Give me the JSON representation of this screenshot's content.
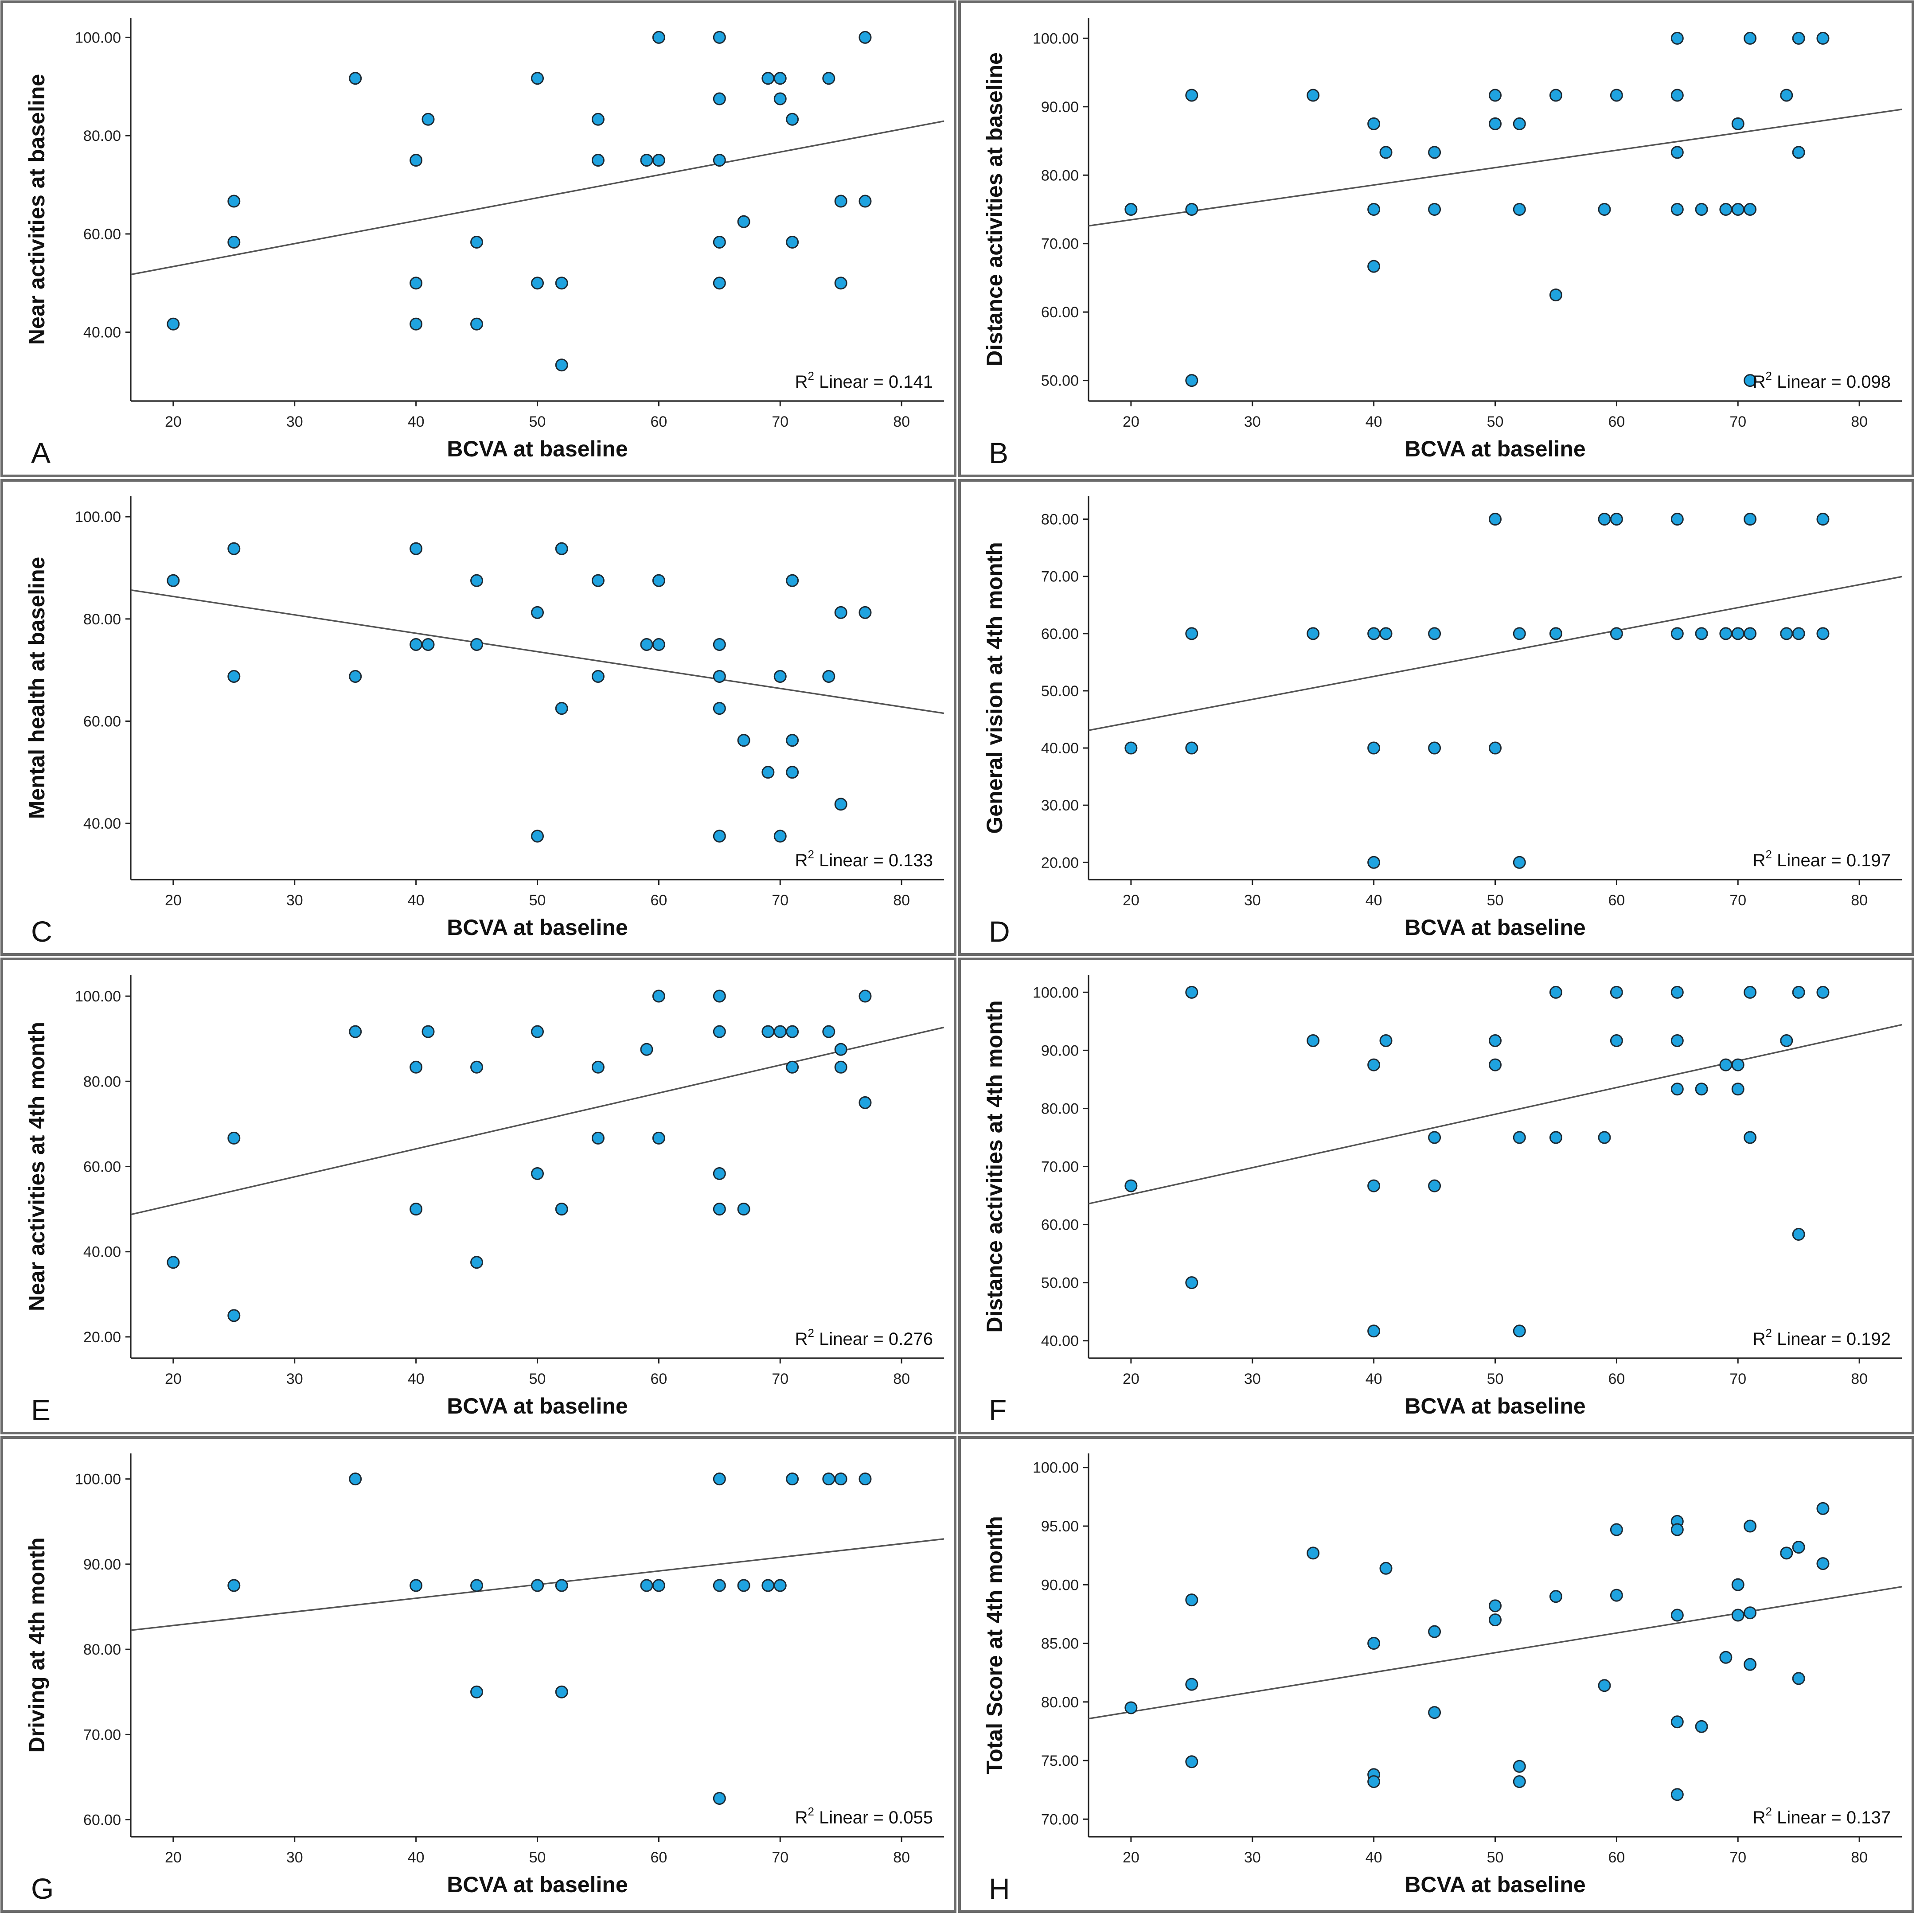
{
  "figure": {
    "point_color": "#1fa3e0",
    "line_color": "#555555",
    "border_color": "#6b6b6b"
  },
  "chart_data": [
    {
      "panel": "A",
      "type": "scatter",
      "xlabel": "BCVA at baseline",
      "ylabel": "Near activities at baseline",
      "xticks": [
        "20",
        "30",
        "40",
        "50",
        "60",
        "70",
        "80"
      ],
      "yticks": [
        "40.00",
        "60.00",
        "80.00",
        "100.00"
      ],
      "xlim": [
        16.5,
        83.5
      ],
      "ylim": [
        26,
        104
      ],
      "x": [
        20,
        25,
        25,
        35,
        40,
        40,
        40,
        41,
        45,
        45,
        50,
        50,
        52,
        52,
        55,
        55,
        59,
        60,
        60,
        65,
        65,
        65,
        65,
        65,
        67,
        69,
        70,
        70,
        71,
        71,
        74,
        75,
        75,
        77,
        77
      ],
      "y": [
        41.67,
        58.33,
        66.67,
        91.67,
        75,
        50,
        41.67,
        83.33,
        58.33,
        41.67,
        91.67,
        50,
        50,
        33.33,
        83.33,
        75,
        75,
        100,
        75,
        100,
        87.5,
        75,
        58.33,
        50,
        62.5,
        91.67,
        91.67,
        87.5,
        83.33,
        58.33,
        91.67,
        66.67,
        50,
        100,
        66.67
      ],
      "fit": {
        "intercept": 44.05,
        "slope": 0.466
      },
      "r2_prefix": "R",
      "r2_exp": "2",
      "r2_text": "Linear = 0.141"
    },
    {
      "panel": "B",
      "type": "scatter",
      "xlabel": "BCVA at baseline",
      "ylabel": "Distance activities at baseline",
      "xticks": [
        "20",
        "30",
        "40",
        "50",
        "60",
        "70",
        "80"
      ],
      "yticks": [
        "50.00",
        "60.00",
        "70.00",
        "80.00",
        "90.00",
        "100.00"
      ],
      "xlim": [
        16.5,
        83.5
      ],
      "ylim": [
        47,
        103
      ],
      "x": [
        20,
        25,
        25,
        25,
        35,
        40,
        40,
        40,
        41,
        45,
        45,
        50,
        50,
        52,
        52,
        55,
        55,
        59,
        60,
        65,
        65,
        65,
        65,
        67,
        69,
        70,
        70,
        71,
        71,
        71,
        74,
        75,
        75,
        77
      ],
      "y": [
        75,
        91.67,
        75,
        50,
        91.67,
        87.5,
        75,
        66.67,
        83.33,
        83.33,
        75,
        91.67,
        87.5,
        87.5,
        75,
        91.67,
        62.5,
        75,
        91.67,
        100,
        91.67,
        83.33,
        75,
        75,
        75,
        87.5,
        75,
        100,
        75,
        50,
        91.67,
        100,
        83.33,
        100
      ],
      "fit": {
        "intercept": 68.4,
        "slope": 0.254
      },
      "r2_prefix": "R",
      "r2_exp": "2",
      "r2_text": "Linear = 0.098"
    },
    {
      "panel": "C",
      "type": "scatter",
      "xlabel": "BCVA at baseline",
      "ylabel": "Mental health at baseline",
      "xticks": [
        "20",
        "30",
        "40",
        "50",
        "60",
        "70",
        "80"
      ],
      "yticks": [
        "40.00",
        "60.00",
        "80.00",
        "100.00"
      ],
      "xlim": [
        16.5,
        83.5
      ],
      "ylim": [
        29,
        104
      ],
      "x": [
        20,
        25,
        25,
        35,
        40,
        40,
        41,
        45,
        45,
        50,
        50,
        52,
        52,
        55,
        55,
        59,
        60,
        60,
        65,
        65,
        65,
        65,
        67,
        69,
        70,
        70,
        71,
        71,
        71,
        74,
        75,
        75,
        77
      ],
      "y": [
        87.5,
        93.75,
        68.75,
        68.75,
        93.75,
        75,
        75,
        87.5,
        75,
        81.25,
        37.5,
        93.75,
        62.5,
        87.5,
        68.75,
        75,
        87.5,
        75,
        75,
        68.75,
        62.5,
        37.5,
        56.25,
        50,
        68.75,
        37.5,
        87.5,
        56.25,
        50,
        68.75,
        81.25,
        43.75,
        81.25
      ],
      "fit": {
        "intercept": 91.6,
        "slope": -0.36
      },
      "r2_prefix": "R",
      "r2_exp": "2",
      "r2_text": "Linear = 0.133"
    },
    {
      "panel": "D",
      "type": "scatter",
      "xlabel": "BCVA at baseline",
      "ylabel": "General vision at 4th month",
      "xticks": [
        "20",
        "30",
        "40",
        "50",
        "60",
        "70",
        "80"
      ],
      "yticks": [
        "20.00",
        "30.00",
        "40.00",
        "50.00",
        "60.00",
        "70.00",
        "80.00"
      ],
      "xlim": [
        16.5,
        83.5
      ],
      "ylim": [
        17,
        84
      ],
      "x": [
        20,
        25,
        25,
        35,
        40,
        40,
        40,
        41,
        45,
        45,
        50,
        50,
        52,
        52,
        55,
        59,
        60,
        60,
        65,
        65,
        67,
        69,
        70,
        71,
        71,
        74,
        75,
        77,
        77
      ],
      "y": [
        40,
        60,
        40,
        60,
        60,
        40,
        20,
        60,
        60,
        40,
        80,
        40,
        60,
        20,
        60,
        80,
        80,
        60,
        80,
        60,
        60,
        60,
        60,
        80,
        60,
        60,
        60,
        80,
        60
      ],
      "fit": {
        "intercept": 36.47,
        "slope": 0.401
      },
      "r2_prefix": "R",
      "r2_exp": "2",
      "r2_text": "Linear = 0.197"
    },
    {
      "panel": "E",
      "type": "scatter",
      "xlabel": "BCVA at baseline",
      "ylabel": "Near activities at 4th month",
      "xticks": [
        "20",
        "30",
        "40",
        "50",
        "60",
        "70",
        "80"
      ],
      "yticks": [
        "20.00",
        "40.00",
        "60.00",
        "80.00",
        "100.00"
      ],
      "xlim": [
        16.5,
        83.5
      ],
      "ylim": [
        15,
        105
      ],
      "x": [
        20,
        25,
        25,
        35,
        40,
        40,
        41,
        45,
        45,
        50,
        50,
        52,
        55,
        55,
        59,
        60,
        60,
        65,
        65,
        65,
        65,
        67,
        69,
        70,
        71,
        71,
        74,
        75,
        75,
        77,
        77
      ],
      "y": [
        37.5,
        25,
        66.67,
        91.67,
        83.33,
        50,
        91.67,
        83.33,
        37.5,
        91.67,
        58.33,
        50,
        83.33,
        66.67,
        87.5,
        100,
        66.67,
        100,
        91.67,
        58.33,
        50,
        50,
        91.67,
        91.67,
        91.67,
        83.33,
        91.67,
        87.5,
        83.33,
        100,
        75
      ],
      "fit": {
        "intercept": 37.9,
        "slope": 0.656
      },
      "r2_prefix": "R",
      "r2_exp": "2",
      "r2_text": "Linear = 0.276"
    },
    {
      "panel": "F",
      "type": "scatter",
      "xlabel": "BCVA at baseline",
      "ylabel": "Distance activities at 4th month",
      "xticks": [
        "20",
        "30",
        "40",
        "50",
        "60",
        "70",
        "80"
      ],
      "yticks": [
        "40.00",
        "50.00",
        "60.00",
        "70.00",
        "80.00",
        "90.00",
        "100.00"
      ],
      "xlim": [
        16.5,
        83.5
      ],
      "ylim": [
        37,
        103
      ],
      "x": [
        20,
        25,
        25,
        35,
        40,
        40,
        40,
        41,
        45,
        45,
        50,
        50,
        52,
        52,
        55,
        55,
        59,
        60,
        60,
        65,
        65,
        65,
        67,
        69,
        70,
        70,
        71,
        71,
        74,
        75,
        75,
        77
      ],
      "y": [
        66.67,
        100,
        50,
        91.67,
        87.5,
        66.67,
        41.67,
        91.67,
        75,
        66.67,
        91.67,
        87.5,
        75,
        41.67,
        100,
        75,
        75,
        100,
        91.67,
        100,
        91.67,
        83.33,
        83.33,
        87.5,
        87.5,
        83.33,
        100,
        75,
        91.67,
        100,
        58.33,
        100
      ],
      "fit": {
        "intercept": 56.0,
        "slope": 0.46
      },
      "r2_prefix": "R",
      "r2_exp": "2",
      "r2_text": "Linear = 0.192"
    },
    {
      "panel": "G",
      "type": "scatter",
      "xlabel": "BCVA at baseline",
      "ylabel": "Driving at 4th month",
      "xticks": [
        "20",
        "30",
        "40",
        "50",
        "60",
        "70",
        "80"
      ],
      "yticks": [
        "60.00",
        "70.00",
        "80.00",
        "90.00",
        "100.00"
      ],
      "xlim": [
        16.5,
        83.5
      ],
      "ylim": [
        58,
        103
      ],
      "x": [
        25,
        35,
        40,
        45,
        45,
        50,
        52,
        52,
        59,
        60,
        65,
        65,
        65,
        67,
        69,
        70,
        71,
        74,
        75,
        77
      ],
      "y": [
        87.5,
        100,
        87.5,
        87.5,
        75,
        87.5,
        87.5,
        75,
        87.5,
        87.5,
        100,
        87.5,
        62.5,
        87.5,
        87.5,
        87.5,
        100,
        100,
        100,
        100
      ],
      "fit": {
        "intercept": 79.6,
        "slope": 0.16
      },
      "r2_prefix": "R",
      "r2_exp": "2",
      "r2_text": "Linear = 0.055"
    },
    {
      "panel": "H",
      "type": "scatter",
      "xlabel": "BCVA at baseline",
      "ylabel": "Total Score at 4th month",
      "xticks": [
        "20",
        "30",
        "40",
        "50",
        "60",
        "70",
        "80"
      ],
      "yticks": [
        "70.00",
        "75.00",
        "80.00",
        "85.00",
        "90.00",
        "95.00",
        "100.00"
      ],
      "xlim": [
        16.5,
        83.5
      ],
      "ylim": [
        68.5,
        101.2
      ],
      "x": [
        20,
        25,
        25,
        25,
        35,
        40,
        40,
        40,
        41,
        45,
        45,
        50,
        50,
        52,
        52,
        55,
        59,
        60,
        60,
        65,
        65,
        65,
        65,
        65,
        67,
        69,
        70,
        70,
        71,
        71,
        71,
        74,
        75,
        75,
        77,
        77
      ],
      "y": [
        79.5,
        88.7,
        81.5,
        74.9,
        92.7,
        85,
        73.8,
        73.2,
        91.4,
        86,
        79.1,
        88.2,
        87,
        74.5,
        73.2,
        89,
        81.4,
        94.7,
        89.1,
        95.4,
        94.7,
        87.4,
        78.3,
        72.1,
        77.9,
        83.8,
        90,
        87.4,
        95,
        87.6,
        83.2,
        92.7,
        93.2,
        82,
        96.5,
        91.8
      ],
      "fit": {
        "intercept": 75.8,
        "slope": 0.168
      },
      "r2_prefix": "R",
      "r2_exp": "2",
      "r2_text": "Linear = 0.137"
    }
  ]
}
